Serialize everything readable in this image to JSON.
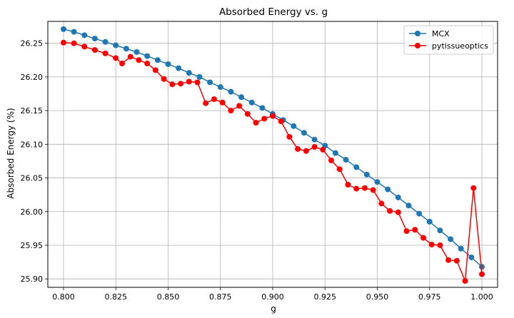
{
  "chart_data": {
    "type": "line",
    "title": "Absorbed Energy vs. g",
    "xlabel": "g",
    "ylabel": "Absorbed Energy (%)",
    "xlim": [
      0.7925,
      1.0075
    ],
    "ylim": [
      25.8875,
      26.2825
    ],
    "xticks": [
      0.8,
      0.825,
      0.85,
      0.875,
      0.9,
      0.925,
      0.95,
      0.975,
      1.0
    ],
    "xtick_labels": [
      "0.800",
      "0.825",
      "0.850",
      "0.875",
      "0.900",
      "0.925",
      "0.950",
      "0.975",
      "1.000"
    ],
    "yticks": [
      25.9,
      25.95,
      26.0,
      26.05,
      26.1,
      26.15,
      26.2,
      26.25
    ],
    "ytick_labels": [
      "25.90",
      "25.95",
      "26.00",
      "26.05",
      "26.10",
      "26.15",
      "26.20",
      "26.25"
    ],
    "grid": true,
    "legend_position": "top-right",
    "x": [
      0.8,
      0.805,
      0.81,
      0.815,
      0.82,
      0.825,
      0.83,
      0.835,
      0.84,
      0.845,
      0.85,
      0.855,
      0.86,
      0.865,
      0.87,
      0.875,
      0.88,
      0.885,
      0.89,
      0.895,
      0.9,
      0.905,
      0.91,
      0.915,
      0.92,
      0.925,
      0.93,
      0.935,
      0.94,
      0.945,
      0.95,
      0.955,
      0.96,
      0.965,
      0.97,
      0.975,
      0.98,
      0.985,
      0.99,
      0.995,
      1.0
    ],
    "series": [
      {
        "name": "MCX",
        "color": "#1f77b4",
        "x": [
          0.8,
          0.805,
          0.81,
          0.815,
          0.82,
          0.825,
          0.83,
          0.835,
          0.84,
          0.845,
          0.85,
          0.855,
          0.86,
          0.865,
          0.87,
          0.875,
          0.88,
          0.885,
          0.89,
          0.895,
          0.9,
          0.905,
          0.91,
          0.915,
          0.92,
          0.925,
          0.93,
          0.935,
          0.94,
          0.945,
          0.95,
          0.955,
          0.96,
          0.965,
          0.97,
          0.975,
          0.98,
          0.985,
          0.99,
          0.995,
          1.0
        ],
        "values": [
          26.271,
          26.267,
          26.262,
          26.257,
          26.252,
          26.247,
          26.242,
          26.237,
          26.231,
          26.225,
          26.219,
          26.213,
          26.206,
          26.2,
          26.192,
          26.185,
          26.178,
          26.17,
          26.162,
          26.154,
          26.145,
          26.136,
          26.127,
          26.117,
          26.107,
          26.098,
          26.087,
          26.077,
          26.066,
          26.055,
          26.044,
          26.033,
          26.021,
          26.009,
          25.997,
          25.985,
          25.972,
          25.959,
          25.945,
          25.932,
          25.918
        ]
      },
      {
        "name": "pytissueoptics",
        "color": "#ff0000",
        "x": [
          0.8,
          0.805,
          0.81,
          0.815,
          0.82,
          0.825,
          0.828,
          0.832,
          0.836,
          0.84,
          0.844,
          0.848,
          0.852,
          0.856,
          0.86,
          0.864,
          0.868,
          0.872,
          0.876,
          0.88,
          0.884,
          0.888,
          0.892,
          0.896,
          0.9,
          0.904,
          0.908,
          0.912,
          0.916,
          0.92,
          0.924,
          0.928,
          0.932,
          0.936,
          0.94,
          0.944,
          0.948,
          0.952,
          0.956,
          0.96,
          0.964,
          0.968,
          0.972,
          0.976,
          0.98,
          0.984,
          0.988,
          0.992,
          0.996,
          1.0
        ],
        "values": [
          26.251,
          26.25,
          26.245,
          26.24,
          26.235,
          26.228,
          26.22,
          26.23,
          26.225,
          26.22,
          26.21,
          26.197,
          26.189,
          26.19,
          26.193,
          26.192,
          26.161,
          26.167,
          26.162,
          26.15,
          26.157,
          26.145,
          26.132,
          26.138,
          26.142,
          26.134,
          26.111,
          26.093,
          26.09,
          26.096,
          26.092,
          26.076,
          26.063,
          26.04,
          26.034,
          26.035,
          26.032,
          26.012,
          26.001,
          25.999,
          25.971,
          25.973,
          25.961,
          25.951,
          25.95,
          25.928,
          25.927,
          25.897,
          26.035,
          25.907
        ]
      }
    ]
  }
}
